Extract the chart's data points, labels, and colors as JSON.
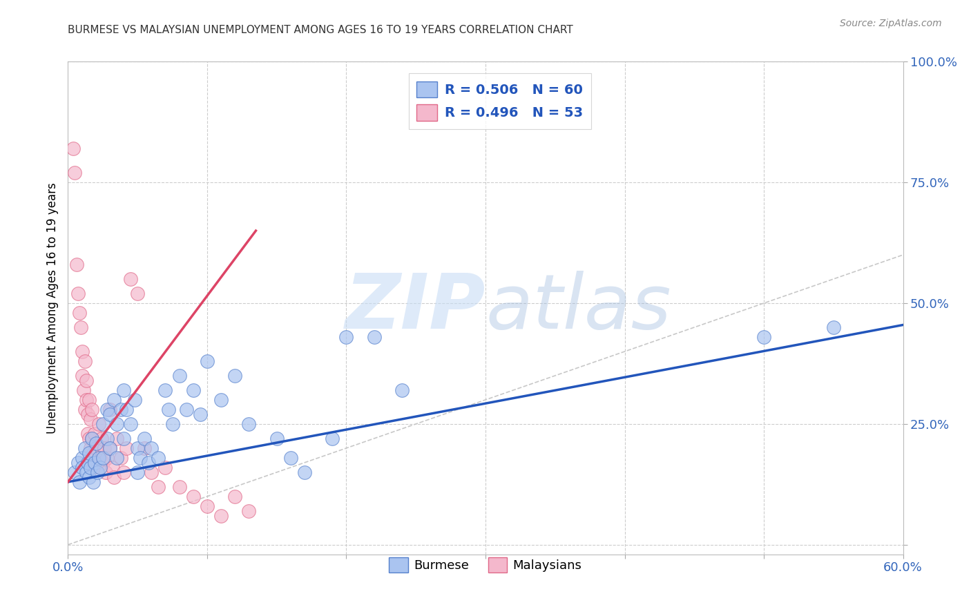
{
  "title": "BURMESE VS MALAYSIAN UNEMPLOYMENT AMONG AGES 16 TO 19 YEARS CORRELATION CHART",
  "source": "Source: ZipAtlas.com",
  "ylabel": "Unemployment Among Ages 16 to 19 years",
  "xlim": [
    0.0,
    0.6
  ],
  "ylim": [
    -0.02,
    1.0
  ],
  "xticks": [
    0.0,
    0.1,
    0.2,
    0.3,
    0.4,
    0.5,
    0.6
  ],
  "yticks": [
    0.0,
    0.25,
    0.5,
    0.75,
    1.0
  ],
  "xtick_labels": [
    "0.0%",
    "",
    "",
    "",
    "",
    "",
    "60.0%"
  ],
  "ytick_labels": [
    "",
    "25.0%",
    "50.0%",
    "75.0%",
    "100.0%"
  ],
  "burmese_color": "#aac4f0",
  "malaysian_color": "#f4b8cc",
  "burmese_edge_color": "#5580cc",
  "malaysian_edge_color": "#e06888",
  "burmese_line_color": "#2255bb",
  "malaysian_line_color": "#dd4466",
  "legend_R_burmese": "R = 0.506",
  "legend_N_burmese": "N = 60",
  "legend_R_malaysian": "R = 0.496",
  "legend_N_malaysian": "N = 53",
  "watermark_zip": "ZIP",
  "watermark_atlas": "atlas",
  "background_color": "#ffffff",
  "grid_color": "#cccccc",
  "burmese_scatter": [
    [
      0.005,
      0.15
    ],
    [
      0.007,
      0.17
    ],
    [
      0.008,
      0.13
    ],
    [
      0.01,
      0.18
    ],
    [
      0.01,
      0.16
    ],
    [
      0.012,
      0.2
    ],
    [
      0.013,
      0.15
    ],
    [
      0.014,
      0.17
    ],
    [
      0.015,
      0.19
    ],
    [
      0.015,
      0.14
    ],
    [
      0.016,
      0.16
    ],
    [
      0.017,
      0.22
    ],
    [
      0.018,
      0.13
    ],
    [
      0.019,
      0.17
    ],
    [
      0.02,
      0.21
    ],
    [
      0.021,
      0.15
    ],
    [
      0.022,
      0.18
    ],
    [
      0.023,
      0.16
    ],
    [
      0.025,
      0.25
    ],
    [
      0.025,
      0.18
    ],
    [
      0.028,
      0.28
    ],
    [
      0.028,
      0.22
    ],
    [
      0.03,
      0.27
    ],
    [
      0.03,
      0.2
    ],
    [
      0.033,
      0.3
    ],
    [
      0.035,
      0.25
    ],
    [
      0.035,
      0.18
    ],
    [
      0.038,
      0.28
    ],
    [
      0.04,
      0.32
    ],
    [
      0.04,
      0.22
    ],
    [
      0.042,
      0.28
    ],
    [
      0.045,
      0.25
    ],
    [
      0.048,
      0.3
    ],
    [
      0.05,
      0.2
    ],
    [
      0.05,
      0.15
    ],
    [
      0.052,
      0.18
    ],
    [
      0.055,
      0.22
    ],
    [
      0.058,
      0.17
    ],
    [
      0.06,
      0.2
    ],
    [
      0.065,
      0.18
    ],
    [
      0.07,
      0.32
    ],
    [
      0.072,
      0.28
    ],
    [
      0.075,
      0.25
    ],
    [
      0.08,
      0.35
    ],
    [
      0.085,
      0.28
    ],
    [
      0.09,
      0.32
    ],
    [
      0.095,
      0.27
    ],
    [
      0.1,
      0.38
    ],
    [
      0.11,
      0.3
    ],
    [
      0.12,
      0.35
    ],
    [
      0.13,
      0.25
    ],
    [
      0.15,
      0.22
    ],
    [
      0.16,
      0.18
    ],
    [
      0.17,
      0.15
    ],
    [
      0.19,
      0.22
    ],
    [
      0.2,
      0.43
    ],
    [
      0.22,
      0.43
    ],
    [
      0.24,
      0.32
    ],
    [
      0.5,
      0.43
    ],
    [
      0.55,
      0.45
    ]
  ],
  "malaysian_scatter": [
    [
      0.004,
      0.82
    ],
    [
      0.005,
      0.77
    ],
    [
      0.006,
      0.58
    ],
    [
      0.007,
      0.52
    ],
    [
      0.008,
      0.48
    ],
    [
      0.009,
      0.45
    ],
    [
      0.01,
      0.4
    ],
    [
      0.01,
      0.35
    ],
    [
      0.011,
      0.32
    ],
    [
      0.012,
      0.38
    ],
    [
      0.012,
      0.28
    ],
    [
      0.013,
      0.34
    ],
    [
      0.013,
      0.3
    ],
    [
      0.014,
      0.27
    ],
    [
      0.014,
      0.23
    ],
    [
      0.015,
      0.3
    ],
    [
      0.015,
      0.22
    ],
    [
      0.016,
      0.26
    ],
    [
      0.016,
      0.2
    ],
    [
      0.017,
      0.28
    ],
    [
      0.017,
      0.22
    ],
    [
      0.018,
      0.19
    ],
    [
      0.018,
      0.16
    ],
    [
      0.019,
      0.23
    ],
    [
      0.02,
      0.2
    ],
    [
      0.021,
      0.17
    ],
    [
      0.022,
      0.25
    ],
    [
      0.023,
      0.18
    ],
    [
      0.024,
      0.22
    ],
    [
      0.025,
      0.17
    ],
    [
      0.026,
      0.2
    ],
    [
      0.027,
      0.15
    ],
    [
      0.028,
      0.18
    ],
    [
      0.03,
      0.28
    ],
    [
      0.03,
      0.2
    ],
    [
      0.032,
      0.16
    ],
    [
      0.033,
      0.14
    ],
    [
      0.035,
      0.22
    ],
    [
      0.038,
      0.18
    ],
    [
      0.04,
      0.15
    ],
    [
      0.042,
      0.2
    ],
    [
      0.045,
      0.55
    ],
    [
      0.05,
      0.52
    ],
    [
      0.055,
      0.2
    ],
    [
      0.06,
      0.15
    ],
    [
      0.065,
      0.12
    ],
    [
      0.07,
      0.16
    ],
    [
      0.08,
      0.12
    ],
    [
      0.09,
      0.1
    ],
    [
      0.1,
      0.08
    ],
    [
      0.11,
      0.06
    ],
    [
      0.12,
      0.1
    ],
    [
      0.13,
      0.07
    ]
  ],
  "burmese_line": [
    [
      0.0,
      0.13
    ],
    [
      0.6,
      0.455
    ]
  ],
  "malaysian_line": [
    [
      0.0,
      0.13
    ],
    [
      0.135,
      0.65
    ]
  ],
  "diag_line": [
    [
      0.0,
      0.0
    ],
    [
      1.0,
      1.0
    ]
  ]
}
